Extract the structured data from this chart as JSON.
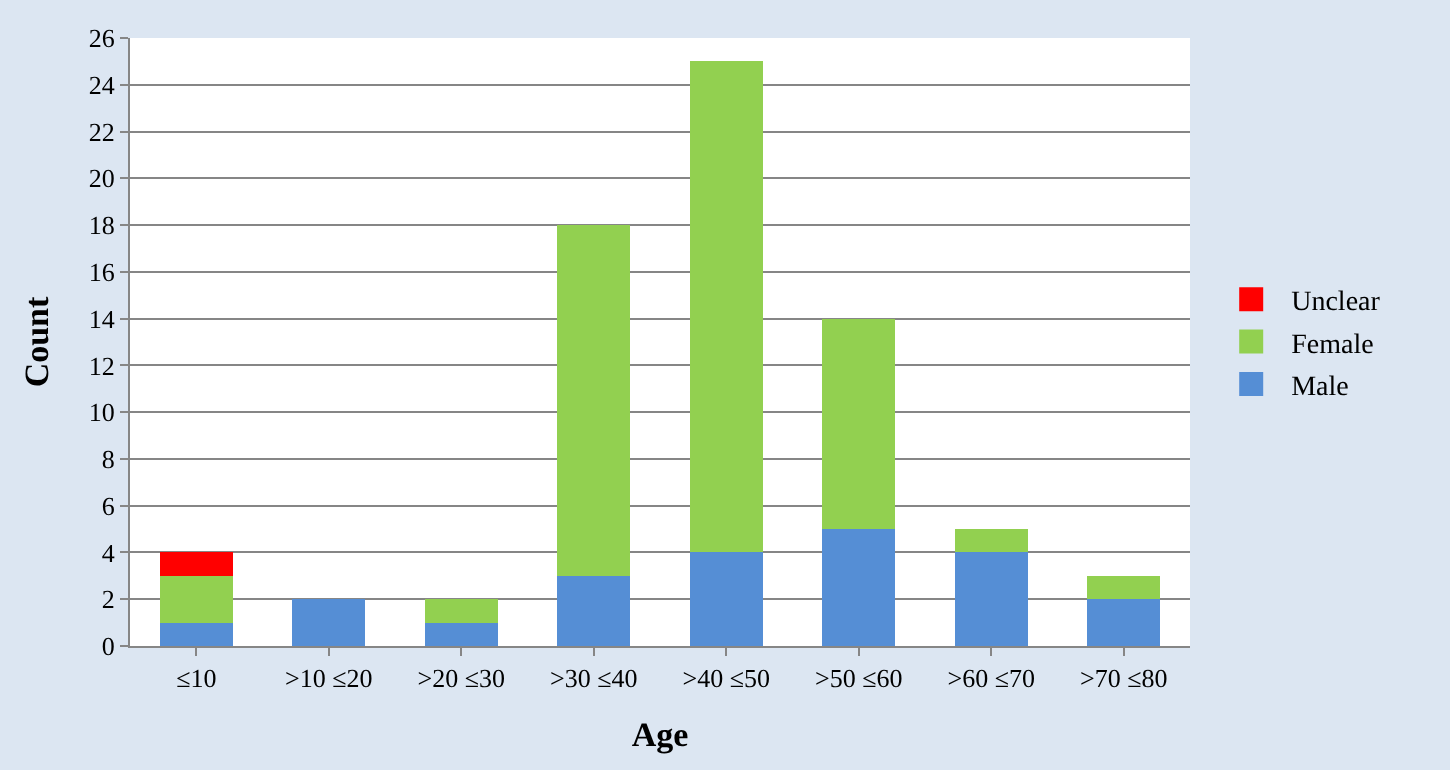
{
  "chart_data": {
    "type": "bar",
    "stacked": true,
    "xlabel": "Age",
    "ylabel": "Count",
    "categories": [
      "≤10",
      ">10 ≤20",
      ">20 ≤30",
      ">30 ≤40",
      ">40 ≤50",
      ">50 ≤60",
      ">60 ≤70",
      ">70 ≤80"
    ],
    "series": [
      {
        "name": "Male",
        "color": "#558ed5",
        "values": [
          1,
          2,
          1,
          3,
          4,
          5,
          4,
          2
        ]
      },
      {
        "name": "Female",
        "color": "#92d050",
        "values": [
          2,
          0,
          1,
          15,
          21,
          9,
          1,
          1
        ]
      },
      {
        "name": "Unclear",
        "color": "#ff0000",
        "values": [
          1,
          0,
          0,
          0,
          0,
          0,
          0,
          0
        ]
      }
    ],
    "ylim": [
      0,
      26
    ],
    "yticks": [
      0,
      2,
      4,
      6,
      8,
      10,
      12,
      14,
      16,
      18,
      20,
      22,
      24,
      26
    ],
    "grid": "y",
    "legend": "right"
  }
}
